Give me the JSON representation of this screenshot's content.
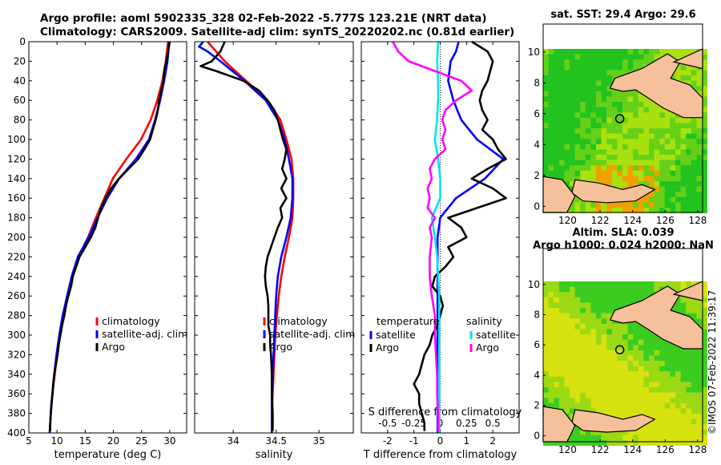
{
  "header": {
    "title_line1": "Argo profile: aoml 5902335_328 02-Feb-2022 -5.777S 123.21E (NRT data)",
    "title_line2": "Climatology: CARS2009. Satellite-adj clim: synTS_20220202.nc (0.81d earlier)"
  },
  "colors": {
    "climatology": "#ff0000",
    "satellite": "#0000ff",
    "argo": "#000000",
    "satellite_salinity": "#00e5ee",
    "argo_salinity": "#ff00ff"
  },
  "chart_data": [
    {
      "type": "line",
      "id": "temperature-profile",
      "xlabel": "temperature (deg C)",
      "ylabel": "",
      "xlim": [
        5,
        33
      ],
      "ylim": [
        400,
        0
      ],
      "xticks": [
        5,
        10,
        15,
        20,
        25,
        30
      ],
      "yticks": [
        0,
        20,
        40,
        60,
        80,
        100,
        120,
        140,
        160,
        180,
        200,
        220,
        240,
        260,
        280,
        300,
        320,
        340,
        360,
        380,
        400
      ],
      "legend": [
        "climatology",
        "satellite-adj. clim",
        "Argo"
      ],
      "series": [
        {
          "name": "climatology",
          "color": "#ff0000",
          "depth": [
            0,
            20,
            40,
            60,
            80,
            100,
            120,
            140,
            160,
            180,
            200,
            220,
            240,
            260,
            280,
            300,
            320,
            340,
            360,
            380,
            400
          ],
          "values": [
            29.7,
            29.3,
            28.7,
            27.8,
            26.6,
            24.9,
            22.3,
            19.9,
            18.4,
            16.9,
            15.5,
            13.8,
            12.7,
            11.8,
            11.1,
            10.5,
            10.0,
            9.6,
            9.2,
            8.9,
            8.7
          ]
        },
        {
          "name": "satellite-adj. clim",
          "color": "#0000ff",
          "depth": [
            0,
            20,
            40,
            60,
            80,
            100,
            120,
            140,
            160,
            180,
            200,
            220,
            240,
            260,
            280,
            300,
            320,
            340,
            360,
            380,
            400
          ],
          "values": [
            29.9,
            29.6,
            29.0,
            28.3,
            27.4,
            26.3,
            24.0,
            21.0,
            18.9,
            17.2,
            15.6,
            13.7,
            12.6,
            11.8,
            11.0,
            10.4,
            9.9,
            9.5,
            9.2,
            8.9,
            8.7
          ]
        },
        {
          "name": "Argo",
          "color": "#000000",
          "depth": [
            0,
            10,
            20,
            30,
            40,
            50,
            60,
            70,
            80,
            90,
            100,
            110,
            120,
            130,
            140,
            150,
            160,
            170,
            180,
            190,
            200,
            210,
            220,
            230,
            240,
            250,
            260,
            270,
            280,
            290,
            300,
            310,
            320,
            330,
            340,
            350,
            360,
            370,
            380,
            390,
            398
          ],
          "values": [
            30.0,
            29.7,
            29.4,
            29.0,
            28.9,
            28.5,
            28.1,
            27.9,
            27.5,
            27.0,
            26.5,
            25.5,
            24.4,
            22.7,
            21.0,
            19.6,
            18.6,
            17.8,
            17.3,
            16.8,
            16.0,
            15.0,
            14.0,
            13.4,
            12.8,
            12.5,
            12.0,
            11.6,
            11.3,
            10.9,
            10.6,
            10.3,
            10.1,
            9.8,
            9.5,
            9.3,
            9.2,
            9.0,
            8.9,
            8.8,
            8.8
          ]
        }
      ]
    },
    {
      "type": "line",
      "id": "salinity-profile",
      "xlabel": "salinity",
      "xlim": [
        33.55,
        35.4
      ],
      "ylim": [
        400,
        0
      ],
      "xticks": [
        34,
        34.5,
        35
      ],
      "legend": [
        "climatology",
        "satellite-adj. clim",
        "Argo"
      ],
      "series": [
        {
          "name": "climatology",
          "color": "#ff0000",
          "depth": [
            0,
            10,
            20,
            40,
            60,
            80,
            100,
            120,
            140,
            160,
            180,
            200,
            220,
            240,
            260,
            280,
            300,
            320,
            340,
            360,
            380,
            400
          ],
          "values": [
            33.7,
            33.8,
            33.9,
            34.15,
            34.4,
            34.55,
            34.62,
            34.68,
            34.7,
            34.7,
            34.69,
            34.65,
            34.6,
            34.56,
            34.53,
            34.51,
            34.49,
            34.48,
            34.47,
            34.46,
            34.45,
            34.45
          ]
        },
        {
          "name": "satellite-adj. clim",
          "color": "#0000ff",
          "depth": [
            0,
            5,
            10,
            20,
            40,
            60,
            80,
            100,
            120,
            140,
            160,
            180,
            200,
            220,
            240,
            260,
            280,
            300,
            320,
            340,
            360,
            380,
            400
          ],
          "values": [
            33.65,
            33.6,
            33.7,
            33.85,
            34.13,
            34.38,
            34.52,
            34.6,
            34.65,
            34.69,
            34.69,
            34.67,
            34.62,
            34.56,
            34.52,
            34.5,
            34.49,
            34.48,
            34.47,
            34.46,
            34.45,
            34.45,
            34.45
          ]
        },
        {
          "name": "Argo",
          "color": "#000000",
          "depth": [
            0,
            10,
            20,
            25,
            30,
            40,
            50,
            60,
            70,
            80,
            90,
            100,
            110,
            120,
            130,
            140,
            150,
            160,
            170,
            180,
            190,
            200,
            210,
            220,
            230,
            240,
            250,
            260,
            270,
            280,
            290,
            300,
            310,
            320,
            340,
            360,
            380,
            398
          ],
          "values": [
            33.9,
            33.85,
            33.75,
            33.62,
            33.8,
            34.12,
            34.3,
            34.4,
            34.48,
            34.52,
            34.55,
            34.58,
            34.62,
            34.6,
            34.57,
            34.62,
            34.56,
            34.62,
            34.55,
            34.57,
            34.52,
            34.48,
            34.44,
            34.4,
            34.38,
            34.37,
            34.38,
            34.4,
            34.41,
            34.41,
            34.41,
            34.43,
            34.43,
            34.44,
            34.45,
            34.45,
            34.46,
            34.46
          ]
        }
      ]
    },
    {
      "type": "line",
      "id": "difference-profile",
      "xlabel": "T difference from climatology",
      "top_xlabel": "S difference from climatology",
      "xlim": [
        -3,
        3
      ],
      "ylim": [
        400,
        0
      ],
      "xticks": [
        -2,
        -1,
        0,
        1,
        2
      ],
      "top_xticks": [
        -0.5,
        -0.25,
        0,
        0.25,
        0.5
      ],
      "top_xtick_labels": [
        "-0.5",
        "-0.25",
        "0",
        "0.25",
        "0.5"
      ],
      "legend_temperature_title": "temperature",
      "legend_salinity_title": "salinity",
      "legend_temperature": [
        "satellite",
        "Argo"
      ],
      "legend_salinity": [
        "satellite",
        "Argo"
      ],
      "series": [
        {
          "name": "T satellite",
          "color": "#0000ff",
          "depth": [
            0,
            10,
            20,
            40,
            60,
            80,
            100,
            120,
            140,
            160,
            180,
            200,
            220,
            240,
            260,
            280,
            300,
            320,
            340,
            360,
            380,
            400
          ],
          "values": [
            0.7,
            0.6,
            0.4,
            0.3,
            0.5,
            0.8,
            1.4,
            2.4,
            1.7,
            0.6,
            0.0,
            -0.1,
            -0.1,
            -0.1,
            -0.1,
            -0.1,
            -0.1,
            -0.1,
            -0.1,
            -0.1,
            -0.1,
            -0.1
          ]
        },
        {
          "name": "T Argo",
          "color": "#000000",
          "depth": [
            0,
            5,
            10,
            20,
            30,
            40,
            50,
            60,
            70,
            80,
            90,
            100,
            110,
            120,
            130,
            140,
            150,
            160,
            170,
            180,
            190,
            200,
            210,
            220,
            230,
            240,
            250,
            260,
            270,
            280,
            290,
            300,
            310,
            320,
            330,
            340,
            350,
            360,
            370,
            380,
            390,
            398
          ],
          "values": [
            1.2,
            1.5,
            1.8,
            2.0,
            1.9,
            1.8,
            1.6,
            1.5,
            1.6,
            1.8,
            1.6,
            2.0,
            2.2,
            2.5,
            1.8,
            1.2,
            2.0,
            2.5,
            1.4,
            0.3,
            0.8,
            1.0,
            0.3,
            0.5,
            0.2,
            -0.2,
            -0.3,
            0.0,
            0.1,
            0.0,
            -0.1,
            -0.3,
            -0.4,
            -0.6,
            -0.7,
            -0.8,
            -1.0,
            -0.8,
            -0.8,
            -0.7,
            -0.6,
            -0.6
          ]
        },
        {
          "name": "S satellite",
          "color": "#00e5ee",
          "depth": [
            0,
            20,
            40,
            60,
            80,
            100,
            120,
            140,
            160,
            180,
            200,
            220,
            240,
            260,
            280,
            300,
            320,
            340,
            360,
            380,
            400
          ],
          "values": [
            -0.02,
            -0.03,
            -0.02,
            -0.02,
            -0.03,
            -0.05,
            -0.02,
            0.0,
            0.0,
            -0.08,
            -0.05,
            -0.03,
            -0.02,
            -0.01,
            -0.01,
            -0.01,
            -0.01,
            -0.01,
            -0.01,
            -0.01,
            -0.01
          ]
        },
        {
          "name": "S Argo",
          "color": "#ff00ff",
          "depth": [
            0,
            10,
            20,
            30,
            40,
            50,
            60,
            70,
            80,
            90,
            100,
            110,
            120,
            130,
            140,
            150,
            160,
            170,
            180,
            190,
            200,
            220,
            240,
            260,
            280,
            300,
            320,
            340,
            360,
            380,
            398
          ],
          "values": [
            -0.45,
            -0.4,
            -0.3,
            -0.05,
            0.2,
            0.3,
            0.15,
            0.05,
            0.02,
            0.05,
            0.02,
            0.05,
            -0.05,
            -0.1,
            -0.08,
            -0.12,
            -0.1,
            -0.12,
            -0.05,
            -0.1,
            -0.08,
            -0.1,
            -0.1,
            -0.08,
            -0.05,
            -0.05,
            -0.04,
            -0.03,
            -0.03,
            -0.02,
            -0.02
          ]
        }
      ]
    }
  ],
  "maps": [
    {
      "title": "sat. SST: 29.4 Argo: 29.6",
      "title2": "",
      "xticks": [
        "120",
        "122",
        "124",
        "126",
        "128"
      ],
      "yticks": [
        "0",
        "2",
        "4",
        "6",
        "8",
        "10"
      ]
    },
    {
      "title": "Altim. SLA: 0.039",
      "title2": "Argo h1000: 0.024 h2000: NaN",
      "xticks": [
        "120",
        "122",
        "124",
        "126",
        "128"
      ],
      "yticks": [
        "0",
        "2",
        "4",
        "6",
        "8",
        "10"
      ]
    }
  ],
  "footer": {
    "credit": "©IMOS 07-Feb-2022 11:39:17"
  }
}
